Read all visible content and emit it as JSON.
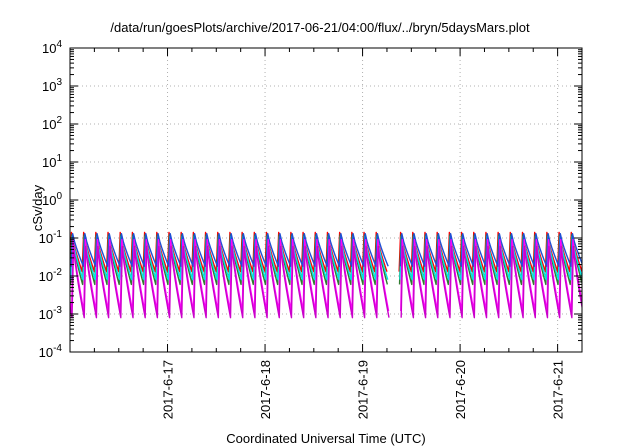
{
  "chart_data": {
    "type": "line",
    "title": "/data/run/goesPlots/archive/2017-06-21/04:00/flux/../bryn/5daysMars.plot",
    "xlabel": "Coordinated Universal Time (UTC)",
    "ylabel": "cSv/day",
    "yscale": "log",
    "ylim": [
      0.0001,
      10000
    ],
    "xlim": [
      "2017-06-16 00:00",
      "2017-06-21 06:00"
    ],
    "grid": true,
    "y_tick_labels": [
      {
        "base": "10",
        "exp": "-4"
      },
      {
        "base": "10",
        "exp": "-3"
      },
      {
        "base": "10",
        "exp": "-2"
      },
      {
        "base": "10",
        "exp": "-1"
      },
      {
        "base": "10",
        "exp": "0"
      },
      {
        "base": "10",
        "exp": "1"
      },
      {
        "base": "10",
        "exp": "2"
      },
      {
        "base": "10",
        "exp": "3"
      },
      {
        "base": "10",
        "exp": "4"
      }
    ],
    "x_tick_labels": [
      "2017-6-17",
      "2017-6-18",
      "2017-6-19",
      "2017-6-20",
      "2017-6-21"
    ],
    "sawtooth_period_hours": 3,
    "sawtooth_gaps": [
      [
        "2017-06-19 06:00",
        "2017-06-19 09:00"
      ]
    ],
    "series": [
      {
        "color": "#ff0000",
        "peak": 0.14,
        "trough": 0.013
      },
      {
        "color": "#2f7d2f",
        "peak": 0.12,
        "trough": 0.006
      },
      {
        "color": "#00e5e5",
        "peak": 0.11,
        "trough": 0.008
      },
      {
        "color": "#1f4fd6",
        "peak": 0.13,
        "trough": 0.018
      },
      {
        "color": "#ff00ff",
        "peak": 0.09,
        "trough": 0.0012
      },
      {
        "color": "#cc00cc",
        "peak": 0.06,
        "trough": 0.0008
      }
    ]
  }
}
